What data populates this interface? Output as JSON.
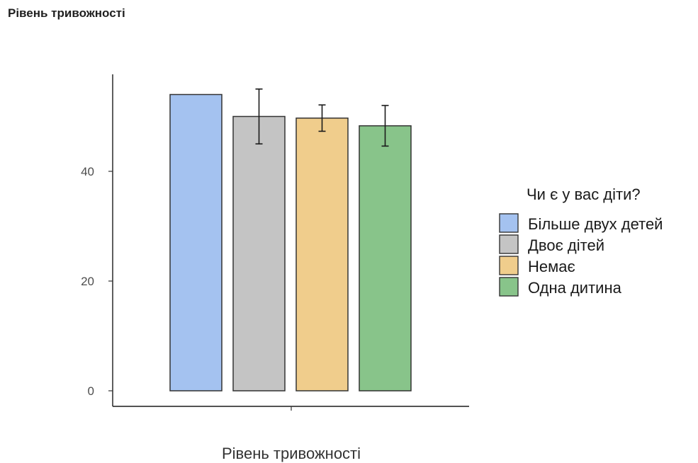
{
  "page": {
    "heading": "Рівень тривожності"
  },
  "chart_data": {
    "type": "bar",
    "title": "",
    "xlabel": "Рівень тривожності",
    "ylabel": "",
    "ylim": [
      0,
      56
    ],
    "yticks": [
      0,
      20,
      40
    ],
    "grid": false,
    "legend_title": "Чи є у вас діти?",
    "legend_position": "right",
    "series": [
      {
        "name": "Більше двух детей",
        "value": 54.0,
        "error_low": null,
        "error_high": null,
        "color": "#a4c2f0"
      },
      {
        "name": "Двоє дітей",
        "value": 50.0,
        "error_low": 45.0,
        "error_high": 55.0,
        "color": "#c4c4c4"
      },
      {
        "name": "Немає",
        "value": 49.7,
        "error_low": 47.3,
        "error_high": 52.1,
        "color": "#f0cd8c"
      },
      {
        "name": "Одна дитина",
        "value": 48.3,
        "error_low": 44.6,
        "error_high": 52.0,
        "color": "#88c48a"
      }
    ]
  }
}
